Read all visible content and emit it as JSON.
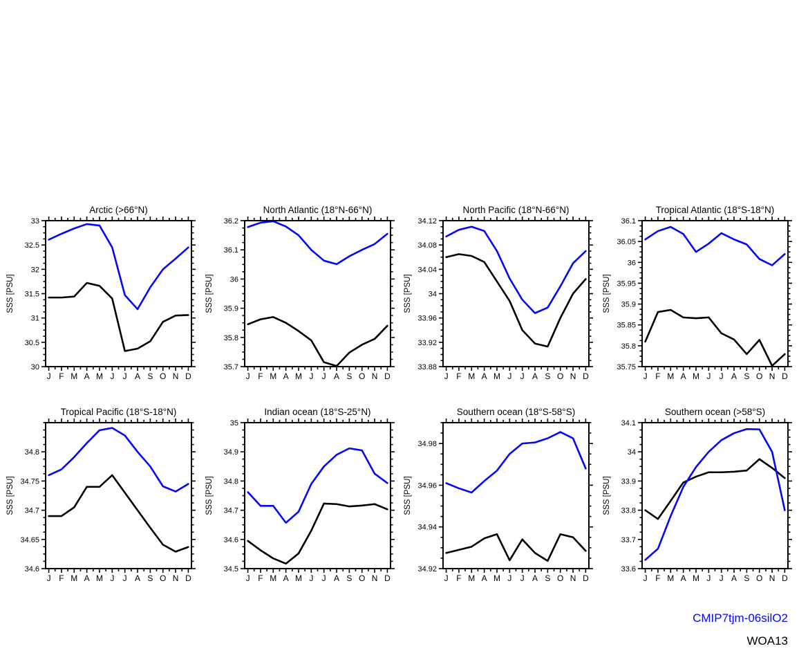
{
  "figure": {
    "background": "#ffffff"
  },
  "ylabel": "SSS [PSU]",
  "months": [
    "J",
    "F",
    "M",
    "A",
    "M",
    "J",
    "J",
    "A",
    "S",
    "O",
    "N",
    "D"
  ],
  "legend": {
    "entries": [
      {
        "label": "CMIP7tjm-06silO2",
        "color": "#0505ff"
      },
      {
        "label": "WOA13",
        "color": "#000000"
      }
    ]
  },
  "chart_data": [
    {
      "type": "line",
      "id": "arctic",
      "title": "Arctic (>66°N)",
      "ylabel": "SSS [PSU]",
      "ylim": [
        30,
        33
      ],
      "yticks": [
        30,
        30.5,
        31,
        31.5,
        32,
        32.5,
        33
      ],
      "ytick_labels": [
        "30",
        "30.5",
        "31",
        "31.5",
        "32",
        "32.5",
        "33"
      ],
      "series": [
        {
          "name": "CMIP7tjm-06silO2",
          "color": "#0505ff",
          "values": [
            32.61,
            32.73,
            32.84,
            32.93,
            32.9,
            32.45,
            31.47,
            31.18,
            31.63,
            32.0,
            32.22,
            32.45
          ]
        },
        {
          "name": "WOA13",
          "color": "#000000",
          "values": [
            31.42,
            31.42,
            31.44,
            31.72,
            31.66,
            31.4,
            30.32,
            30.37,
            30.52,
            30.92,
            31.05,
            31.06
          ]
        }
      ]
    },
    {
      "type": "line",
      "id": "north-atlantic",
      "title": "North Atlantic (18°N-66°N)",
      "ylabel": "SSS [PSU]",
      "ylim": [
        35.7,
        36.2
      ],
      "yticks": [
        35.7,
        35.8,
        35.9,
        36,
        36.1,
        36.2
      ],
      "ytick_labels": [
        "35.7",
        "35.8",
        "35.9",
        "36",
        "36.1",
        "36.2"
      ],
      "series": [
        {
          "name": "CMIP7tjm-06silO2",
          "color": "#0505ff",
          "values": [
            36.178,
            36.193,
            36.198,
            36.18,
            36.15,
            36.1,
            36.063,
            36.051,
            36.078,
            36.1,
            36.12,
            36.155
          ]
        },
        {
          "name": "WOA13",
          "color": "#000000",
          "values": [
            35.845,
            35.862,
            35.87,
            35.85,
            35.822,
            35.79,
            35.715,
            35.702,
            35.748,
            35.775,
            35.795,
            35.84
          ]
        }
      ]
    },
    {
      "type": "line",
      "id": "north-pacific",
      "title": "North Pacific (18°N-66°N)",
      "ylabel": "SSS [PSU]",
      "ylim": [
        33.88,
        34.12
      ],
      "yticks": [
        33.88,
        33.92,
        33.96,
        34,
        34.04,
        34.08,
        34.12
      ],
      "ytick_labels": [
        "33.88",
        "33.92",
        "33.96",
        "34",
        "34.04",
        "34.08",
        "34.12"
      ],
      "series": [
        {
          "name": "CMIP7tjm-06silO2",
          "color": "#0505ff",
          "values": [
            34.094,
            34.105,
            34.11,
            34.103,
            34.07,
            34.025,
            33.99,
            33.968,
            33.977,
            34.012,
            34.05,
            34.07
          ]
        },
        {
          "name": "WOA13",
          "color": "#000000",
          "values": [
            34.06,
            34.065,
            34.062,
            34.052,
            34.02,
            33.988,
            33.94,
            33.918,
            33.913,
            33.96,
            34.0,
            34.024
          ]
        }
      ]
    },
    {
      "type": "line",
      "id": "tropical-atlantic",
      "title": "Tropical Atlantic (18°S-18°N)",
      "ylabel": "SSS [PSU]",
      "ylim": [
        35.75,
        36.1
      ],
      "yticks": [
        35.75,
        35.8,
        35.85,
        35.9,
        35.95,
        36,
        36.05,
        36.1
      ],
      "ytick_labels": [
        "35.75",
        "35.8",
        "35.85",
        "35.9",
        "35.95",
        "36",
        "36.05",
        "36.1"
      ],
      "series": [
        {
          "name": "CMIP7tjm-06silO2",
          "color": "#0505ff",
          "values": [
            36.055,
            36.075,
            36.085,
            36.068,
            36.025,
            36.045,
            36.07,
            36.055,
            36.043,
            36.008,
            35.993,
            36.02
          ]
        },
        {
          "name": "WOA13",
          "color": "#000000",
          "values": [
            35.81,
            35.881,
            35.886,
            35.868,
            35.866,
            35.868,
            35.83,
            35.815,
            35.78,
            35.814,
            35.752,
            35.78
          ]
        }
      ]
    },
    {
      "type": "line",
      "id": "tropical-pacific",
      "title": "Tropical Pacific (18°S-18°N)",
      "ylabel": "SSS [PSU]",
      "ylim": [
        34.6,
        34.85
      ],
      "yticks": [
        34.6,
        34.65,
        34.7,
        34.75,
        34.8
      ],
      "ytick_labels": [
        "34.6",
        "34.65",
        "34.7",
        "34.75",
        "34.8"
      ],
      "series": [
        {
          "name": "CMIP7tjm-06silO2",
          "color": "#0505ff",
          "values": [
            34.76,
            34.77,
            34.791,
            34.815,
            34.837,
            34.841,
            34.828,
            34.8,
            34.775,
            34.741,
            34.732,
            34.745
          ]
        },
        {
          "name": "WOA13",
          "color": "#000000",
          "values": [
            34.69,
            34.69,
            34.705,
            34.74,
            34.74,
            34.76,
            34.73,
            34.7,
            34.67,
            34.641,
            34.629,
            34.637
          ]
        }
      ]
    },
    {
      "type": "line",
      "id": "indian-ocean",
      "title": "Indian ocean (18°S-25°N)",
      "ylabel": "SSS [PSU]",
      "ylim": [
        34.5,
        35
      ],
      "yticks": [
        34.5,
        34.6,
        34.7,
        34.8,
        34.9,
        35
      ],
      "ytick_labels": [
        "34.5",
        "34.6",
        "34.7",
        "34.8",
        "34.9",
        "35"
      ],
      "series": [
        {
          "name": "CMIP7tjm-06silO2",
          "color": "#0505ff",
          "values": [
            34.762,
            34.715,
            34.715,
            34.657,
            34.695,
            34.79,
            34.85,
            34.89,
            34.912,
            34.905,
            34.825,
            34.793
          ]
        },
        {
          "name": "WOA13",
          "color": "#000000",
          "values": [
            34.595,
            34.563,
            34.535,
            34.517,
            34.552,
            34.63,
            34.723,
            34.721,
            34.713,
            34.716,
            34.721,
            34.703
          ]
        }
      ]
    },
    {
      "type": "line",
      "id": "southern-ocean-18s-58s",
      "title": "Southern ocean (18°S-58°S)",
      "ylabel": "SSS [PSU]",
      "ylim": [
        34.92,
        34.99
      ],
      "yticks": [
        34.92,
        34.94,
        34.96,
        34.98
      ],
      "ytick_labels": [
        "34.92",
        "34.94",
        "34.96",
        "34.98"
      ],
      "series": [
        {
          "name": "CMIP7tjm-06silO2",
          "color": "#0505ff",
          "values": [
            34.961,
            34.9585,
            34.9565,
            34.962,
            34.967,
            34.975,
            34.98,
            34.9805,
            34.9825,
            34.9855,
            34.9825,
            34.968
          ]
        },
        {
          "name": "WOA13",
          "color": "#000000",
          "values": [
            34.9275,
            34.929,
            34.9305,
            34.9345,
            34.9365,
            34.924,
            34.934,
            34.9275,
            34.9237,
            34.9365,
            34.935,
            34.9285
          ]
        }
      ]
    },
    {
      "type": "line",
      "id": "southern-ocean-58s",
      "title": "Southern ocean (>58°S)",
      "ylabel": "SSS [PSU]",
      "ylim": [
        33.6,
        34.1
      ],
      "yticks": [
        33.6,
        33.7,
        33.8,
        33.9,
        34,
        34.1
      ],
      "ytick_labels": [
        "33.6",
        "33.7",
        "33.8",
        "33.9",
        "34",
        "34.1"
      ],
      "series": [
        {
          "name": "CMIP7tjm-06silO2",
          "color": "#0505ff",
          "values": [
            33.63,
            33.668,
            33.78,
            33.88,
            33.948,
            34.0,
            34.04,
            34.064,
            34.078,
            34.077,
            34.0,
            33.8
          ]
        },
        {
          "name": "WOA13",
          "color": "#000000",
          "values": [
            33.8,
            33.77,
            33.832,
            33.895,
            33.915,
            33.93,
            33.93,
            33.932,
            33.936,
            33.975,
            33.945,
            33.91
          ]
        }
      ]
    }
  ]
}
